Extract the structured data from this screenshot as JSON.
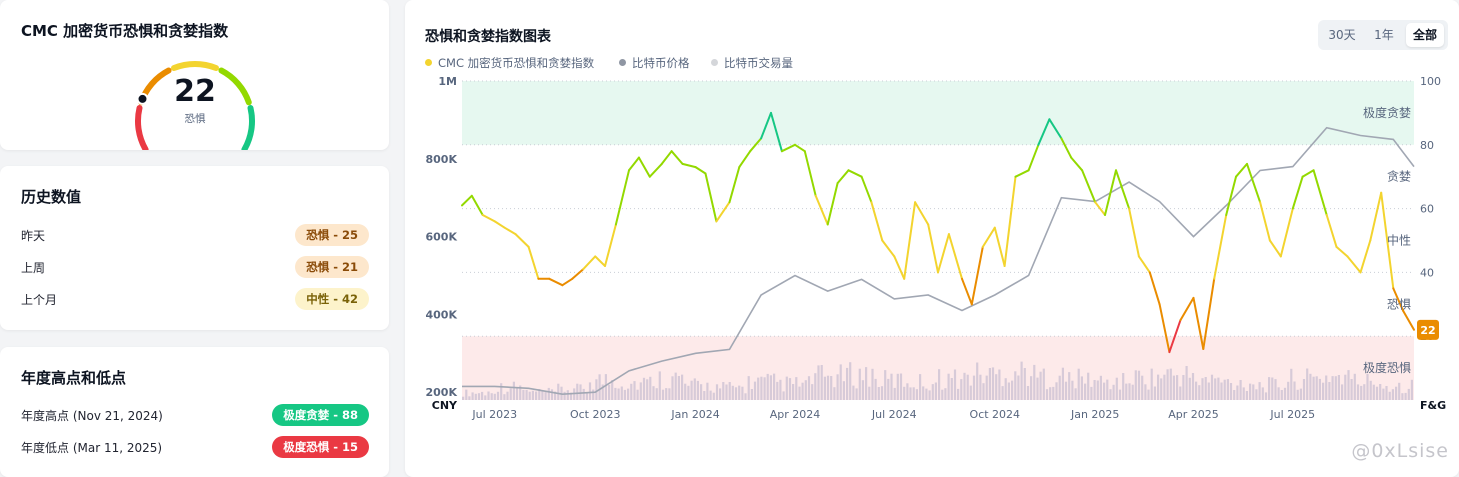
{
  "gauge": {
    "title": "CMC 加密货币恐惧和贪婪指数",
    "value": 22,
    "value_text": "22",
    "label": "恐惧",
    "segment_colors": [
      "#ea3943",
      "#ea8c00",
      "#f3d42f",
      "#93d900",
      "#16c784"
    ]
  },
  "history": {
    "title": "历史数值",
    "rows": [
      {
        "label": "昨天",
        "badge": "恐惧 - 25",
        "tone": "fear"
      },
      {
        "label": "上周",
        "badge": "恐惧 - 21",
        "tone": "fear"
      },
      {
        "label": "上个月",
        "badge": "中性 - 42",
        "tone": "neutral"
      }
    ]
  },
  "yearly": {
    "title": "年度高点和低点",
    "rows": [
      {
        "label": "年度高点 (Nov 21, 2024)",
        "badge": "极度贪婪 - 88",
        "tone": "extreme-greed"
      },
      {
        "label": "年度低点 (Mar 11, 2025)",
        "badge": "极度恐惧 - 15",
        "tone": "extreme-fear"
      }
    ]
  },
  "chart_header": {
    "title": "恐惧和贪婪指数图表",
    "ranges": [
      "30天",
      "1年",
      "全部"
    ],
    "active_range": "全部"
  },
  "watermark": "@0xLsise",
  "chart_data": {
    "type": "line",
    "legend": [
      {
        "name": "CMC 加密货币恐惧和贪婪指数",
        "color": "#f3d42f"
      },
      {
        "name": "比特币价格",
        "color": "#8f96a3"
      },
      {
        "name": "比特币交易量",
        "color": "#d4d6da"
      }
    ],
    "x_start": "2023-06-01",
    "x_end": "2025-10-20",
    "x_ticks": [
      "Jul 2023",
      "Oct 2023",
      "Jan 2024",
      "Apr 2024",
      "Jul 2024",
      "Oct 2024",
      "Jan 2025",
      "Apr 2025",
      "Jul 2025"
    ],
    "x_tick_dates": [
      "2023-07-01",
      "2023-10-01",
      "2024-01-01",
      "2024-04-01",
      "2024-07-01",
      "2024-10-01",
      "2025-01-01",
      "2025-04-01",
      "2025-07-01"
    ],
    "y_left": {
      "unit": "CNY",
      "ticks": [
        "200K",
        "400K",
        "600K",
        "800K",
        "1M"
      ],
      "tick_values": [
        200000,
        400000,
        600000,
        800000,
        1000000
      ],
      "range": [
        180000,
        1000000
      ]
    },
    "y_right": {
      "unit": "F&G",
      "ticks": [
        "20",
        "40",
        "60",
        "80",
        "100"
      ],
      "tick_values": [
        20,
        40,
        60,
        80,
        100
      ],
      "range": [
        0,
        100
      ]
    },
    "zone_labels": [
      {
        "text": "极度贪婪",
        "value": 90
      },
      {
        "text": "贪婪",
        "value": 70
      },
      {
        "text": "中性",
        "value": 50
      },
      {
        "text": "恐惧",
        "value": 30
      },
      {
        "text": "极度恐惧",
        "value": 10
      }
    ],
    "zone_bands": [
      {
        "from": 80,
        "to": 100,
        "color": "#e6f8f0"
      },
      {
        "from": 0,
        "to": 20,
        "color": "#fdeaea"
      }
    ],
    "current_value": 22,
    "current_label": "22",
    "fear_greed": [
      {
        "date": "2023-06-01",
        "value": 61
      },
      {
        "date": "2023-06-10",
        "value": 64
      },
      {
        "date": "2023-06-20",
        "value": 58
      },
      {
        "date": "2023-07-01",
        "value": 56
      },
      {
        "date": "2023-07-10",
        "value": 54
      },
      {
        "date": "2023-07-20",
        "value": 52
      },
      {
        "date": "2023-08-01",
        "value": 48
      },
      {
        "date": "2023-08-10",
        "value": 38
      },
      {
        "date": "2023-08-20",
        "value": 38
      },
      {
        "date": "2023-09-01",
        "value": 36
      },
      {
        "date": "2023-09-10",
        "value": 38
      },
      {
        "date": "2023-09-20",
        "value": 41
      },
      {
        "date": "2023-10-01",
        "value": 45
      },
      {
        "date": "2023-10-10",
        "value": 42
      },
      {
        "date": "2023-10-20",
        "value": 55
      },
      {
        "date": "2023-11-01",
        "value": 72
      },
      {
        "date": "2023-11-10",
        "value": 76
      },
      {
        "date": "2023-11-20",
        "value": 70
      },
      {
        "date": "2023-12-01",
        "value": 74
      },
      {
        "date": "2023-12-10",
        "value": 78
      },
      {
        "date": "2023-12-20",
        "value": 74
      },
      {
        "date": "2024-01-01",
        "value": 73
      },
      {
        "date": "2024-01-10",
        "value": 71
      },
      {
        "date": "2024-01-20",
        "value": 56
      },
      {
        "date": "2024-02-01",
        "value": 62
      },
      {
        "date": "2024-02-10",
        "value": 73
      },
      {
        "date": "2024-02-20",
        "value": 78
      },
      {
        "date": "2024-03-01",
        "value": 82
      },
      {
        "date": "2024-03-10",
        "value": 90
      },
      {
        "date": "2024-03-20",
        "value": 78
      },
      {
        "date": "2024-04-01",
        "value": 80
      },
      {
        "date": "2024-04-10",
        "value": 78
      },
      {
        "date": "2024-04-20",
        "value": 64
      },
      {
        "date": "2024-05-01",
        "value": 55
      },
      {
        "date": "2024-05-10",
        "value": 68
      },
      {
        "date": "2024-05-20",
        "value": 72
      },
      {
        "date": "2024-06-01",
        "value": 70
      },
      {
        "date": "2024-06-10",
        "value": 62
      },
      {
        "date": "2024-06-20",
        "value": 50
      },
      {
        "date": "2024-07-01",
        "value": 45
      },
      {
        "date": "2024-07-10",
        "value": 38
      },
      {
        "date": "2024-07-20",
        "value": 62
      },
      {
        "date": "2024-08-01",
        "value": 55
      },
      {
        "date": "2024-08-10",
        "value": 40
      },
      {
        "date": "2024-08-20",
        "value": 52
      },
      {
        "date": "2024-09-01",
        "value": 38
      },
      {
        "date": "2024-09-10",
        "value": 30
      },
      {
        "date": "2024-09-20",
        "value": 48
      },
      {
        "date": "2024-10-01",
        "value": 54
      },
      {
        "date": "2024-10-10",
        "value": 42
      },
      {
        "date": "2024-10-20",
        "value": 70
      },
      {
        "date": "2024-11-01",
        "value": 72
      },
      {
        "date": "2024-11-10",
        "value": 80
      },
      {
        "date": "2024-11-20",
        "value": 88
      },
      {
        "date": "2024-12-01",
        "value": 82
      },
      {
        "date": "2024-12-10",
        "value": 76
      },
      {
        "date": "2024-12-20",
        "value": 72
      },
      {
        "date": "2025-01-01",
        "value": 62
      },
      {
        "date": "2025-01-10",
        "value": 58
      },
      {
        "date": "2025-01-20",
        "value": 72
      },
      {
        "date": "2025-02-01",
        "value": 60
      },
      {
        "date": "2025-02-10",
        "value": 45
      },
      {
        "date": "2025-02-20",
        "value": 40
      },
      {
        "date": "2025-03-01",
        "value": 30
      },
      {
        "date": "2025-03-10",
        "value": 15
      },
      {
        "date": "2025-03-20",
        "value": 25
      },
      {
        "date": "2025-04-01",
        "value": 32
      },
      {
        "date": "2025-04-10",
        "value": 16
      },
      {
        "date": "2025-04-20",
        "value": 38
      },
      {
        "date": "2025-05-01",
        "value": 58
      },
      {
        "date": "2025-05-10",
        "value": 70
      },
      {
        "date": "2025-05-20",
        "value": 74
      },
      {
        "date": "2025-06-01",
        "value": 62
      },
      {
        "date": "2025-06-10",
        "value": 50
      },
      {
        "date": "2025-06-20",
        "value": 45
      },
      {
        "date": "2025-07-01",
        "value": 60
      },
      {
        "date": "2025-07-10",
        "value": 70
      },
      {
        "date": "2025-07-20",
        "value": 72
      },
      {
        "date": "2025-08-01",
        "value": 58
      },
      {
        "date": "2025-08-10",
        "value": 48
      },
      {
        "date": "2025-08-20",
        "value": 45
      },
      {
        "date": "2025-09-01",
        "value": 40
      },
      {
        "date": "2025-09-10",
        "value": 50
      },
      {
        "date": "2025-09-20",
        "value": 65
      },
      {
        "date": "2025-10-01",
        "value": 35
      },
      {
        "date": "2025-10-10",
        "value": 28
      },
      {
        "date": "2025-10-20",
        "value": 22
      }
    ],
    "btc_price": [
      {
        "date": "2023-06-01",
        "value": 215000
      },
      {
        "date": "2023-07-01",
        "value": 215000
      },
      {
        "date": "2023-08-01",
        "value": 210000
      },
      {
        "date": "2023-09-01",
        "value": 195000
      },
      {
        "date": "2023-10-01",
        "value": 200000
      },
      {
        "date": "2023-11-01",
        "value": 255000
      },
      {
        "date": "2023-12-01",
        "value": 280000
      },
      {
        "date": "2024-01-01",
        "value": 300000
      },
      {
        "date": "2024-02-01",
        "value": 310000
      },
      {
        "date": "2024-03-01",
        "value": 450000
      },
      {
        "date": "2024-04-01",
        "value": 500000
      },
      {
        "date": "2024-05-01",
        "value": 460000
      },
      {
        "date": "2024-06-01",
        "value": 490000
      },
      {
        "date": "2024-07-01",
        "value": 440000
      },
      {
        "date": "2024-08-01",
        "value": 450000
      },
      {
        "date": "2024-09-01",
        "value": 410000
      },
      {
        "date": "2024-10-01",
        "value": 450000
      },
      {
        "date": "2024-11-01",
        "value": 500000
      },
      {
        "date": "2024-12-01",
        "value": 700000
      },
      {
        "date": "2025-01-01",
        "value": 690000
      },
      {
        "date": "2025-02-01",
        "value": 740000
      },
      {
        "date": "2025-03-01",
        "value": 690000
      },
      {
        "date": "2025-04-01",
        "value": 600000
      },
      {
        "date": "2025-05-01",
        "value": 680000
      },
      {
        "date": "2025-06-01",
        "value": 770000
      },
      {
        "date": "2025-07-01",
        "value": 780000
      },
      {
        "date": "2025-08-01",
        "value": 880000
      },
      {
        "date": "2025-09-01",
        "value": 860000
      },
      {
        "date": "2025-10-01",
        "value": 850000
      },
      {
        "date": "2025-10-20",
        "value": 780000
      }
    ],
    "btc_volume_note_values": [
      20,
      35,
      22,
      30,
      55,
      48,
      60,
      40,
      35,
      50,
      45,
      65,
      70,
      55,
      50,
      60,
      72,
      80,
      65,
      58,
      50,
      62,
      70,
      55,
      48,
      42,
      58,
      66,
      52,
      40
    ]
  }
}
